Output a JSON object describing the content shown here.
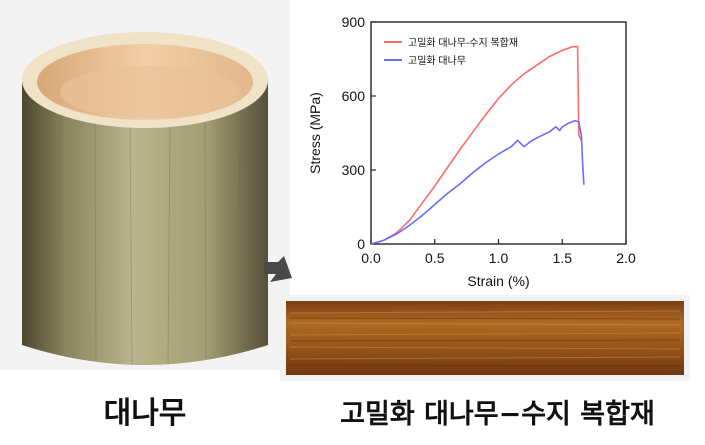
{
  "captions": {
    "bamboo": "대나무",
    "composite": "고밀화 대나무−수지 복합재"
  },
  "images": {
    "bamboo_photo": "bamboo-cylinder",
    "composite_photo": "densified-bamboo-resin-composite-board",
    "arrow_icon": "arrow-down-right-icon"
  },
  "colors": {
    "composite_series": "#ff6b6b",
    "bamboo_series": "#6b6bff"
  },
  "chart_data": {
    "type": "line",
    "title": "",
    "xlabel": "Strain (%)",
    "ylabel": "Stress (MPa)",
    "xlim": [
      0,
      2.0
    ],
    "ylim": [
      0,
      900
    ],
    "xticks": [
      "0.0",
      "0.5",
      "1.0",
      "1.5",
      "2.0"
    ],
    "yticks": [
      "0",
      "300",
      "600",
      "900"
    ],
    "legend_position": "top-left",
    "series": [
      {
        "name": "고밀화 대나무-수지 복합재",
        "color": "#ff6b6b",
        "x": [
          0,
          0.1,
          0.2,
          0.3,
          0.4,
          0.5,
          0.6,
          0.7,
          0.8,
          0.9,
          1.0,
          1.1,
          1.2,
          1.3,
          1.4,
          1.5,
          1.58,
          1.62,
          1.63,
          1.65
        ],
        "y": [
          0,
          15,
          45,
          95,
          165,
          235,
          310,
          385,
          455,
          525,
          590,
          645,
          690,
          725,
          760,
          785,
          800,
          800,
          440,
          420
        ]
      },
      {
        "name": "고밀화 대나무",
        "color": "#6b6bff",
        "x": [
          0,
          0.1,
          0.2,
          0.3,
          0.4,
          0.5,
          0.6,
          0.7,
          0.8,
          0.9,
          1.0,
          1.1,
          1.15,
          1.2,
          1.25,
          1.3,
          1.4,
          1.45,
          1.48,
          1.5,
          1.55,
          1.6,
          1.63,
          1.65,
          1.66,
          1.67
        ],
        "y": [
          0,
          15,
          40,
          75,
          115,
          160,
          205,
          245,
          290,
          330,
          365,
          395,
          420,
          395,
          415,
          430,
          455,
          475,
          460,
          475,
          490,
          500,
          495,
          440,
          330,
          240
        ]
      }
    ]
  }
}
